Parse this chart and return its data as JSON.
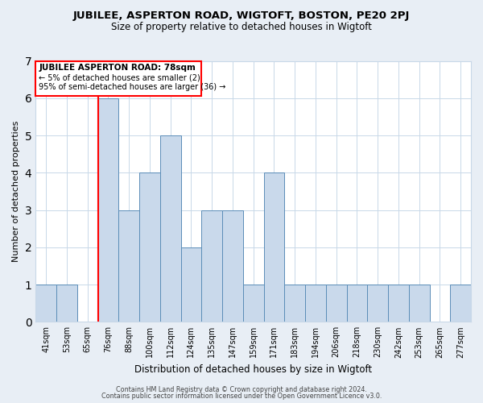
{
  "title": "JUBILEE, ASPERTON ROAD, WIGTOFT, BOSTON, PE20 2PJ",
  "subtitle": "Size of property relative to detached houses in Wigtoft",
  "xlabel": "Distribution of detached houses by size in Wigtoft",
  "ylabel": "Number of detached properties",
  "bins": [
    "41sqm",
    "53sqm",
    "65sqm",
    "76sqm",
    "88sqm",
    "100sqm",
    "112sqm",
    "124sqm",
    "135sqm",
    "147sqm",
    "159sqm",
    "171sqm",
    "183sqm",
    "194sqm",
    "206sqm",
    "218sqm",
    "230sqm",
    "242sqm",
    "253sqm",
    "265sqm",
    "277sqm"
  ],
  "values": [
    1,
    1,
    0,
    6,
    3,
    4,
    5,
    2,
    3,
    3,
    1,
    4,
    1,
    1,
    1,
    1,
    1,
    1,
    1,
    0,
    1
  ],
  "bar_color": "#c9d9eb",
  "bar_edge_color": "#5b8db8",
  "red_line_bin_index": 3,
  "ylim": [
    0,
    7
  ],
  "yticks": [
    0,
    1,
    2,
    3,
    4,
    5,
    6,
    7
  ],
  "annotation_title": "JUBILEE ASPERTON ROAD: 78sqm",
  "annotation_line1": "← 5% of detached houses are smaller (2)",
  "annotation_line2": "95% of semi-detached houses are larger (36) →",
  "footer1": "Contains HM Land Registry data © Crown copyright and database right 2024.",
  "footer2": "Contains public sector information licensed under the Open Government Licence v3.0.",
  "bg_color": "#e8eef5",
  "plot_bg_color": "#ffffff",
  "grid_color": "#c8d8e8",
  "title_fontsize": 9.5,
  "subtitle_fontsize": 8.5,
  "xlabel_fontsize": 8.5,
  "ylabel_fontsize": 8,
  "tick_fontsize": 7,
  "ann_title_fontsize": 7.5,
  "ann_text_fontsize": 7,
  "footer_fontsize": 5.8
}
